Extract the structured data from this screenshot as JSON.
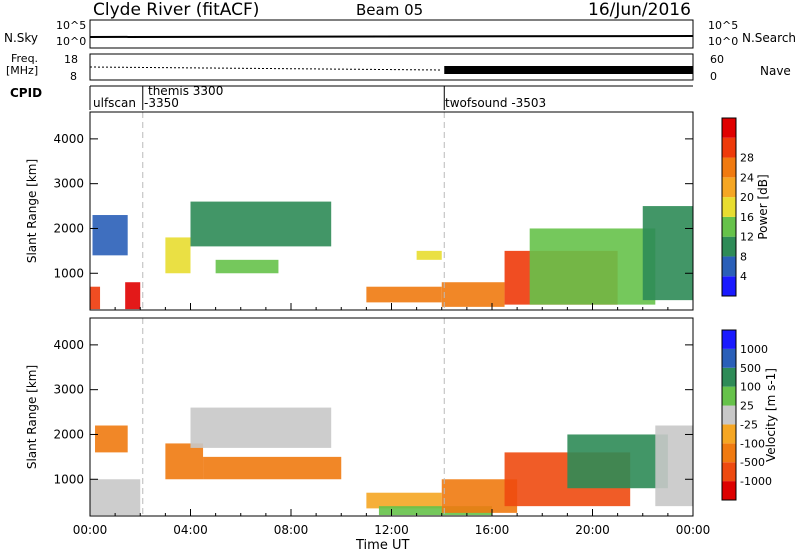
{
  "header": {
    "station": "Clyde River (fitACF)",
    "beam": "Beam 05",
    "date": "16/Jun/2016"
  },
  "strip_labels": {
    "nsky": "N.Sky",
    "nsearch": "N.Search",
    "freq_line1": "Freq.",
    "freq_line2": "[MHz]",
    "nave": "Nave",
    "cpid": "CPID"
  },
  "strip_ticks": {
    "noise_left_top": "10^5",
    "noise_left_bottom": "10^0",
    "noise_right_top": "10^5",
    "noise_right_bottom": "10^0",
    "freq_top": "18",
    "freq_bottom": "8",
    "nave_top": "60",
    "nave_bottom": "0"
  },
  "cpid_segments": [
    {
      "label": "ulfscan",
      "start_hour": 0.0
    },
    {
      "label": "themis 3300",
      "start_hour": 2.1
    },
    {
      "label": "-3350",
      "start_hour": 2.1
    },
    {
      "label": "twofsound  -3503",
      "start_hour": 14.1
    }
  ],
  "colors": {
    "power_scale": [
      "#1a1aff",
      "#2a5fb8",
      "#2e8b57",
      "#66c24a",
      "#e8dd30",
      "#f5a623",
      "#f07a10",
      "#ee3a0a",
      "#e00000"
    ],
    "velocity_scale": [
      "#dd0000",
      "#ee4a10",
      "#f07a10",
      "#f5a623",
      "#c8c8c8",
      "#66c24a",
      "#2e8b57",
      "#2a5fb8",
      "#1a1aff"
    ]
  },
  "chart_data": [
    {
      "type": "heatmap",
      "name": "Power",
      "xlabel": "",
      "ylabel": "Slant Range [km]",
      "xlim": [
        0,
        24
      ],
      "ylim": [
        180,
        4600
      ],
      "y_ticks": [
        1000,
        2000,
        3000,
        4000
      ],
      "colorbar": {
        "label": "Power [dB]",
        "range": [
          0,
          32
        ],
        "ticks": [
          "4",
          "8",
          "12",
          "16",
          "20",
          "24",
          "28"
        ]
      },
      "regions": [
        {
          "x": [
            0.0,
            0.4
          ],
          "y": [
            200,
            700
          ],
          "value": 28
        },
        {
          "x": [
            1.4,
            2.0
          ],
          "y": [
            200,
            800
          ],
          "value": 30
        },
        {
          "x": [
            0.1,
            1.5
          ],
          "y": [
            1400,
            2300
          ],
          "value": 6
        },
        {
          "x": [
            3.0,
            4.0
          ],
          "y": [
            1000,
            1800
          ],
          "value": 16
        },
        {
          "x": [
            4.0,
            9.6
          ],
          "y": [
            1600,
            2600
          ],
          "value": 8
        },
        {
          "x": [
            5.0,
            7.5
          ],
          "y": [
            1000,
            1300
          ],
          "value": 12
        },
        {
          "x": [
            11.0,
            14.0
          ],
          "y": [
            350,
            700
          ],
          "value": 24
        },
        {
          "x": [
            13.0,
            14.0
          ],
          "y": [
            1300,
            1500
          ],
          "value": 16
        },
        {
          "x": [
            14.0,
            16.5
          ],
          "y": [
            250,
            800
          ],
          "value": 24
        },
        {
          "x": [
            16.5,
            21.0
          ],
          "y": [
            300,
            1500
          ],
          "value": 26
        },
        {
          "x": [
            17.5,
            22.5
          ],
          "y": [
            300,
            2000
          ],
          "value": 14
        },
        {
          "x": [
            22.0,
            24.0
          ],
          "y": [
            400,
            2500
          ],
          "value": 8
        }
      ]
    },
    {
      "type": "heatmap",
      "name": "Velocity",
      "xlabel": "Time UT",
      "ylabel": "Slant Range [km]",
      "xlim": [
        0,
        24
      ],
      "ylim": [
        180,
        4600
      ],
      "x_ticks": [
        "00:00",
        "04:00",
        "08:00",
        "12:00",
        "16:00",
        "20:00",
        "00:00"
      ],
      "y_ticks": [
        1000,
        2000,
        3000,
        4000
      ],
      "colorbar": {
        "label": "Velocity [m s-1]",
        "ticks": [
          "1000",
          "500",
          "100",
          "25",
          "-25",
          "-100",
          "-500",
          "-1000"
        ]
      },
      "regions": [
        {
          "x": [
            0.0,
            2.0
          ],
          "y": [
            200,
            1000
          ],
          "value": 0
        },
        {
          "x": [
            0.2,
            1.5
          ],
          "y": [
            1600,
            2200
          ],
          "value": -100
        },
        {
          "x": [
            3.0,
            4.5
          ],
          "y": [
            1000,
            1800
          ],
          "value": -150
        },
        {
          "x": [
            4.0,
            9.6
          ],
          "y": [
            1700,
            2600
          ],
          "value": 0
        },
        {
          "x": [
            4.5,
            10.0
          ],
          "y": [
            1000,
            1500
          ],
          "value": -150
        },
        {
          "x": [
            11.0,
            14.0
          ],
          "y": [
            350,
            700
          ],
          "value": -80
        },
        {
          "x": [
            11.5,
            16.0
          ],
          "y": [
            200,
            400
          ],
          "value": 50
        },
        {
          "x": [
            14.0,
            17.0
          ],
          "y": [
            250,
            1000
          ],
          "value": -150
        },
        {
          "x": [
            16.5,
            21.5
          ],
          "y": [
            400,
            1600
          ],
          "value": -600
        },
        {
          "x": [
            19.0,
            23.0
          ],
          "y": [
            800,
            2000
          ],
          "value": 300
        },
        {
          "x": [
            22.5,
            24.0
          ],
          "y": [
            400,
            2200
          ],
          "value": 0
        }
      ]
    }
  ]
}
